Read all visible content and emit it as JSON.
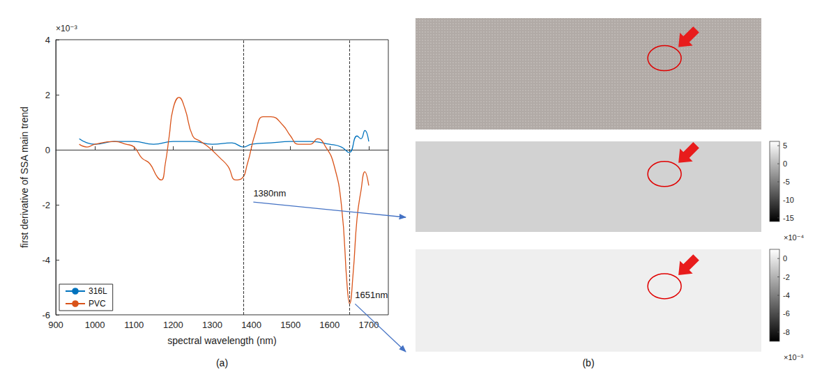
{
  "chart_data": {
    "type": "line",
    "x_label": "spectral wavelength (nm)",
    "y_label": "first derivative of SSA main trend",
    "y_multiplier": "×10⁻³",
    "xlim": [
      900,
      1750
    ],
    "xticks": [
      900,
      1000,
      1100,
      1200,
      1300,
      1400,
      1500,
      1600,
      1700
    ],
    "ylim": [
      -6,
      4
    ],
    "yticks": [
      -6,
      -4,
      -2,
      0,
      2,
      4
    ],
    "grid": false,
    "legend": "lower left",
    "vlines": [
      1380,
      1651
    ],
    "annotations": [
      {
        "text": "1380nm",
        "x": 1405,
        "y": -1.6
      },
      {
        "text": "1651nm",
        "x": 1665,
        "y": -5.3
      }
    ],
    "series": [
      {
        "name": "316L",
        "color": "#0072bd",
        "x": [
          960,
          980,
          1000,
          1050,
          1100,
          1150,
          1200,
          1250,
          1300,
          1350,
          1380,
          1400,
          1450,
          1500,
          1550,
          1600,
          1630,
          1650,
          1670,
          1680,
          1690,
          1700
        ],
        "values": [
          0.4,
          0.25,
          0.2,
          0.3,
          0.3,
          0.2,
          0.3,
          0.3,
          0.2,
          0.25,
          0.1,
          0.2,
          0.25,
          0.3,
          0.3,
          0.2,
          0.1,
          -0.1,
          0.5,
          0.4,
          0.7,
          0.3
        ]
      },
      {
        "name": "PVC",
        "color": "#d95319",
        "x": [
          960,
          980,
          1000,
          1050,
          1080,
          1100,
          1120,
          1140,
          1160,
          1170,
          1180,
          1190,
          1200,
          1215,
          1230,
          1250,
          1270,
          1290,
          1320,
          1340,
          1360,
          1375,
          1390,
          1410,
          1430,
          1450,
          1480,
          1500,
          1520,
          1550,
          1570,
          1590,
          1610,
          1630,
          1645,
          1651,
          1660,
          1670,
          1680,
          1690,
          1700
        ],
        "values": [
          0.2,
          0.1,
          0.2,
          0.3,
          0.2,
          0.1,
          -0.3,
          -0.5,
          -1.0,
          -1.1,
          -0.5,
          0.5,
          1.5,
          1.9,
          1.5,
          0.5,
          0.3,
          0.1,
          -0.3,
          -0.6,
          -1.1,
          -1.05,
          -0.5,
          0.6,
          1.2,
          1.2,
          0.9,
          0.5,
          0.2,
          0.2,
          0.4,
          0.1,
          -0.5,
          -2.0,
          -5.0,
          -5.6,
          -4.5,
          -2.5,
          -1.5,
          -0.8,
          -1.3
        ]
      }
    ]
  },
  "panel_labels": [
    "(a)",
    "(b)"
  ],
  "colorbars": [
    {
      "range": [
        -16,
        6.2
      ],
      "ticks": [
        5,
        0,
        -5,
        -10,
        -15
      ],
      "multiplier": "×10⁻⁴"
    },
    {
      "range": [
        -9,
        1
      ],
      "ticks": [
        0,
        -2,
        -4,
        -6,
        -8
      ],
      "multiplier": "×10⁻³"
    }
  ]
}
